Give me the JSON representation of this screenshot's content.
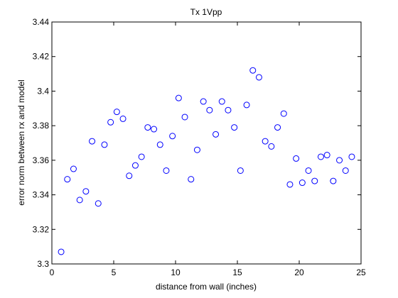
{
  "chart_data": {
    "type": "scatter",
    "title": "Tx 1Vpp",
    "xlabel": "distance from wall (inches)",
    "ylabel": "error norm between rx and model",
    "xlim": [
      0,
      25
    ],
    "ylim": [
      3.3,
      3.44
    ],
    "xticks": [
      0,
      5,
      10,
      15,
      20,
      25
    ],
    "xtick_labels": [
      "0",
      "5",
      "10",
      "15",
      "20",
      "25"
    ],
    "yticks": [
      3.3,
      3.32,
      3.34,
      3.36,
      3.38,
      3.4,
      3.42,
      3.44
    ],
    "ytick_labels": [
      "3.3",
      "3.32",
      "3.34",
      "3.36",
      "3.38",
      "3.4",
      "3.42",
      "3.44"
    ],
    "grid": false,
    "marker_color": "#0000ff",
    "marker": "open-circle",
    "x": [
      0.75,
      1.25,
      1.75,
      2.25,
      2.75,
      3.25,
      3.75,
      4.25,
      4.75,
      5.25,
      5.75,
      6.25,
      6.75,
      7.25,
      7.75,
      8.25,
      8.75,
      9.25,
      9.75,
      10.25,
      10.75,
      11.25,
      11.75,
      12.25,
      12.75,
      13.25,
      13.75,
      14.25,
      14.75,
      15.25,
      15.75,
      16.25,
      16.75,
      17.25,
      17.75,
      18.25,
      18.75,
      19.25,
      19.75,
      20.25,
      20.75,
      21.25,
      21.75,
      22.25,
      22.75,
      23.25,
      23.75,
      24.25
    ],
    "y": [
      3.307,
      3.349,
      3.355,
      3.337,
      3.342,
      3.371,
      3.335,
      3.369,
      3.382,
      3.388,
      3.384,
      3.351,
      3.357,
      3.362,
      3.379,
      3.378,
      3.369,
      3.354,
      3.374,
      3.396,
      3.385,
      3.349,
      3.366,
      3.394,
      3.389,
      3.375,
      3.394,
      3.389,
      3.379,
      3.354,
      3.392,
      3.412,
      3.408,
      3.371,
      3.368,
      3.379,
      3.387,
      3.346,
      3.361,
      3.347,
      3.354,
      3.348,
      3.362,
      3.363,
      3.348,
      3.36,
      3.354,
      3.362
    ]
  }
}
